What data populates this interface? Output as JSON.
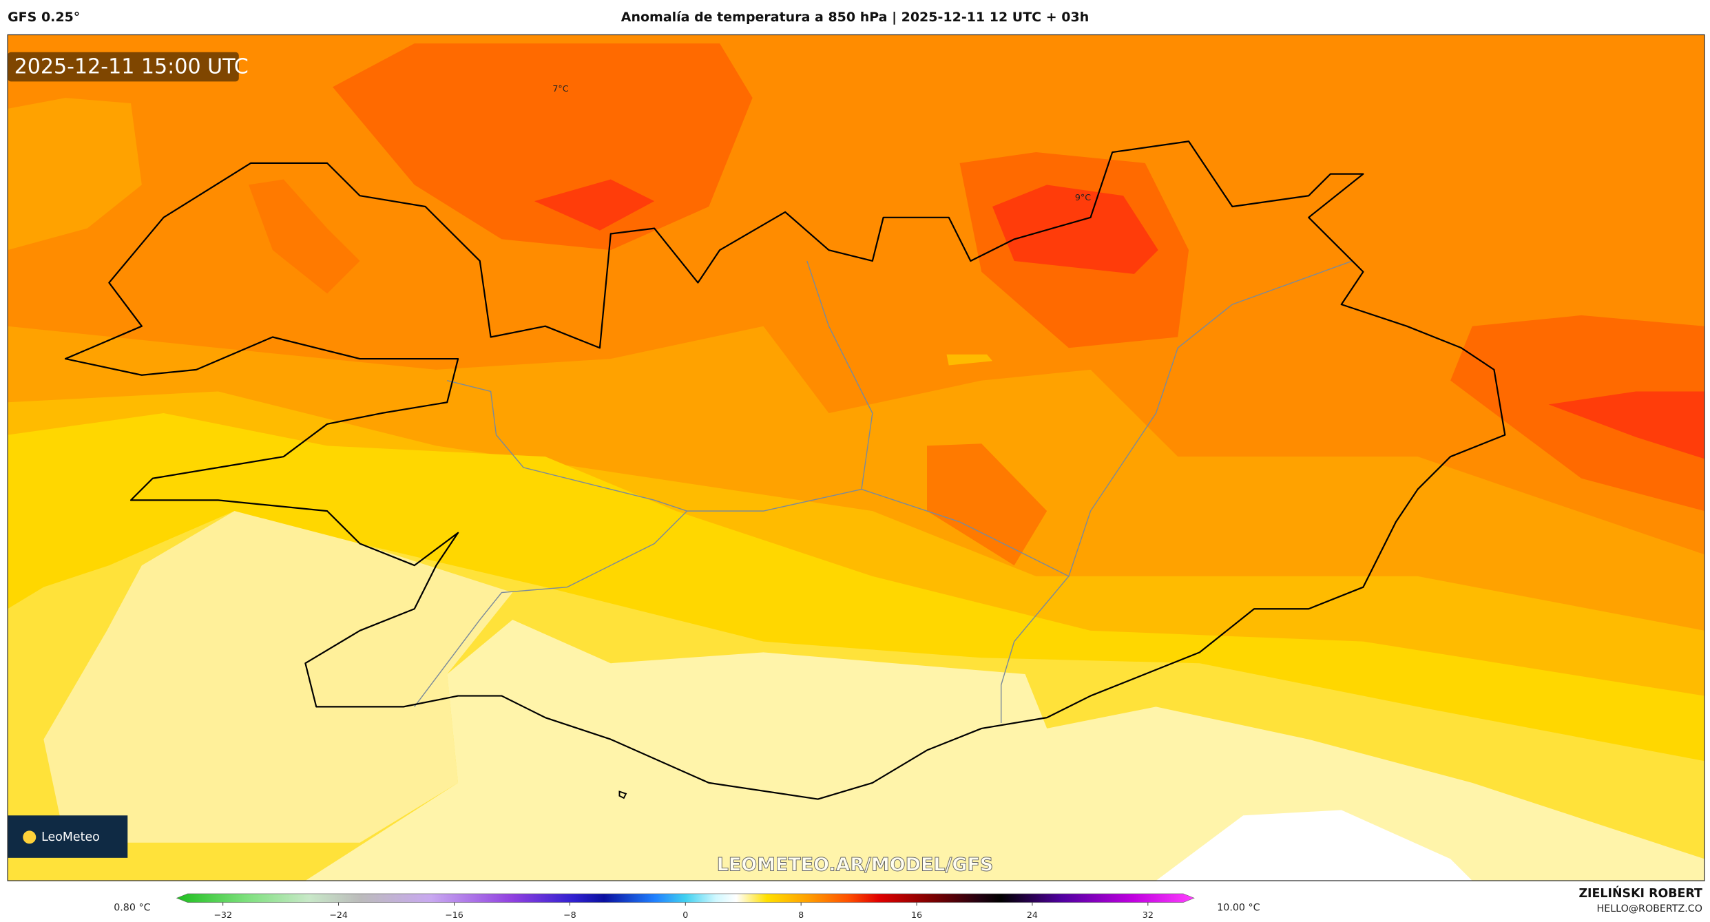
{
  "header": {
    "model": "GFS 0.25°",
    "title": "Anomalía de temperatura a 850 hPa | 2025-12-11 12 UTC + 03h",
    "author": "ZIELIŃSKI ROBERT",
    "email": "HELLO@ROBERTZ.CO"
  },
  "map": {
    "timestamp": "2025-12-11 15:00 UTC",
    "contour_labels": [
      "7°C",
      "9°C"
    ],
    "logo": "LeoMeteo",
    "watermark": "LEOMETEO.AR/MODEL/GFS"
  },
  "legend": {
    "min_label": "0.80 °C",
    "max_label": "10.00 °C",
    "lim": [
      -35.2,
      35.2
    ],
    "ticks": [
      {
        "value": -32,
        "label": "−32"
      },
      {
        "value": -24,
        "label": "−24"
      },
      {
        "value": -16,
        "label": "−16"
      },
      {
        "value": -8,
        "label": "−8"
      },
      0,
      8,
      16,
      24,
      32
    ]
  }
}
